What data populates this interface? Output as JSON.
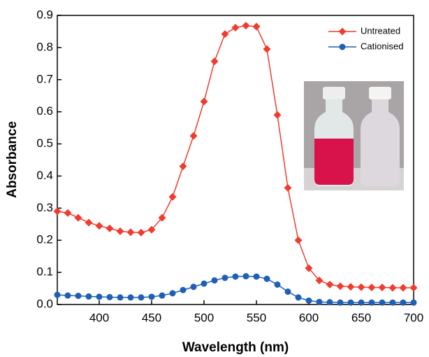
{
  "chart_data": {
    "type": "line",
    "x_label": "Wavelength (nm)",
    "y_label": "Absorbance",
    "x": [
      360,
      370,
      380,
      390,
      400,
      410,
      420,
      430,
      440,
      450,
      460,
      470,
      480,
      490,
      500,
      510,
      520,
      530,
      540,
      550,
      560,
      570,
      580,
      590,
      600,
      610,
      620,
      630,
      640,
      650,
      660,
      670,
      680,
      690,
      700
    ],
    "series": [
      {
        "name": "Untreated",
        "color": "#f03c2e",
        "marker": "diamond",
        "values": [
          0.29,
          0.285,
          0.27,
          0.255,
          0.245,
          0.237,
          0.228,
          0.225,
          0.224,
          0.233,
          0.27,
          0.335,
          0.43,
          0.525,
          0.632,
          0.757,
          0.842,
          0.862,
          0.868,
          0.865,
          0.795,
          0.59,
          0.363,
          0.2,
          0.113,
          0.075,
          0.062,
          0.057,
          0.055,
          0.054,
          0.053,
          0.053,
          0.052,
          0.052,
          0.052
        ]
      },
      {
        "name": "Cationised",
        "color": "#1f5fb4",
        "marker": "circle",
        "values": [
          0.03,
          0.028,
          0.027,
          0.025,
          0.024,
          0.023,
          0.022,
          0.022,
          0.022,
          0.024,
          0.028,
          0.035,
          0.045,
          0.055,
          0.065,
          0.075,
          0.083,
          0.087,
          0.088,
          0.087,
          0.08,
          0.062,
          0.04,
          0.022,
          0.012,
          0.008,
          0.007,
          0.006,
          0.006,
          0.006,
          0.006,
          0.006,
          0.006,
          0.006,
          0.006
        ]
      }
    ],
    "xlim": [
      360,
      700
    ],
    "xticks": [
      400,
      450,
      500,
      550,
      600,
      650,
      700
    ],
    "ylim": [
      0,
      0.9
    ],
    "yticks": [
      {
        "value": 0,
        "label": "0.0"
      },
      0.1,
      0.2,
      0.3,
      0.4,
      0.5,
      0.6,
      0.7,
      0.8,
      0.9
    ],
    "legend": "top-right"
  }
}
